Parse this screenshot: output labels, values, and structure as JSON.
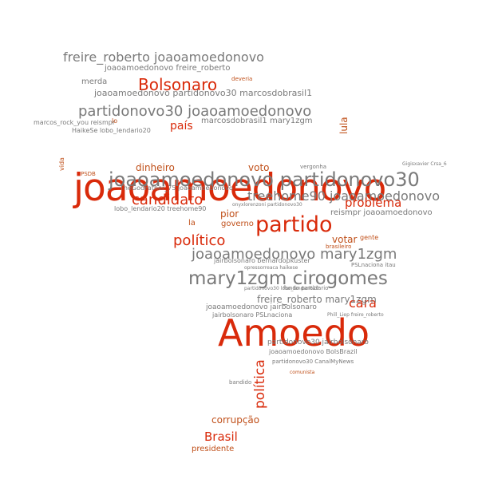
{
  "colors": {
    "red": "#d92a0a",
    "gray": "#7a7a7a",
    "rust": "#c0501a"
  },
  "words": {
    "w01": "joaoamoedonovo",
    "w02": "Amoedo",
    "w03": "joaoamoedonovo partidonovo30",
    "w04": "mary1zgm cirogomes",
    "w05": "partido",
    "w06": "Bolsonaro",
    "w07": "freire_roberto joaoamoedonovo",
    "w08": "partidonovo30 joaoamoedonovo",
    "w09": "joaoamoedonovo mary1zgm",
    "w10": "treehome90 joaoamoedonovo",
    "w11": "candidato",
    "w12": "político",
    "w13": "Brasil",
    "w14": "cara",
    "w15": "problema",
    "w16": "política",
    "w17": "país",
    "w18": "joaoamoedonovo partidonovo30 marcosdobrasil1",
    "w19": "freire_roberto mary1zgm",
    "w20": "corrupção",
    "w21": "dinheiro",
    "w22": "voto",
    "w23": "votar",
    "w24": "pior",
    "w25": "governo",
    "w26": "lula",
    "w27": "marcosdobrasil1 mary1zgm",
    "w28": "joaoamoedonovo freire_roberto",
    "w29": "reismpr joaoamoedonovo",
    "w30": "merda",
    "w31": "presidente",
    "w32": "partidonovo30 jairbolsonaro",
    "w33": "joaoamoedonovo jairbolsonaro",
    "w34": "jairbolsonaro PSLnaciona",
    "w35": "joaoamoedonovo BolsBrazil",
    "w36": "partidonovo30 CanalMyNews",
    "w37": "lobo_lendario20 treehome90",
    "w38": "TheGodFather_75 joaoamoedonovo",
    "w39": "HaikeSe lobo_lendario20",
    "w40": "marcos_rock_you reismpr",
    "w41": "jairbolsonaro bernardopkuster",
    "w42": "gente",
    "w43": "vida",
    "w44": "la",
    "w45": "lo",
    "w46": "PSDB",
    "w47": "brasileiro",
    "w48": "fundo partidario",
    "w49": "PSLnaciona itau",
    "w50": "Gigisxavier Crsa_6",
    "w51": "vergonha",
    "w52": "Phill_Liep freire_roberto",
    "w53": "bandido",
    "w54": "comunista",
    "w55": "deveria",
    "w56": "onyxlorenzoni partidonovo30",
    "w57": "opressorreaca haikese",
    "w58": "partidonovo30 lobo_lendario20",
    "w59": "governo"
  }
}
